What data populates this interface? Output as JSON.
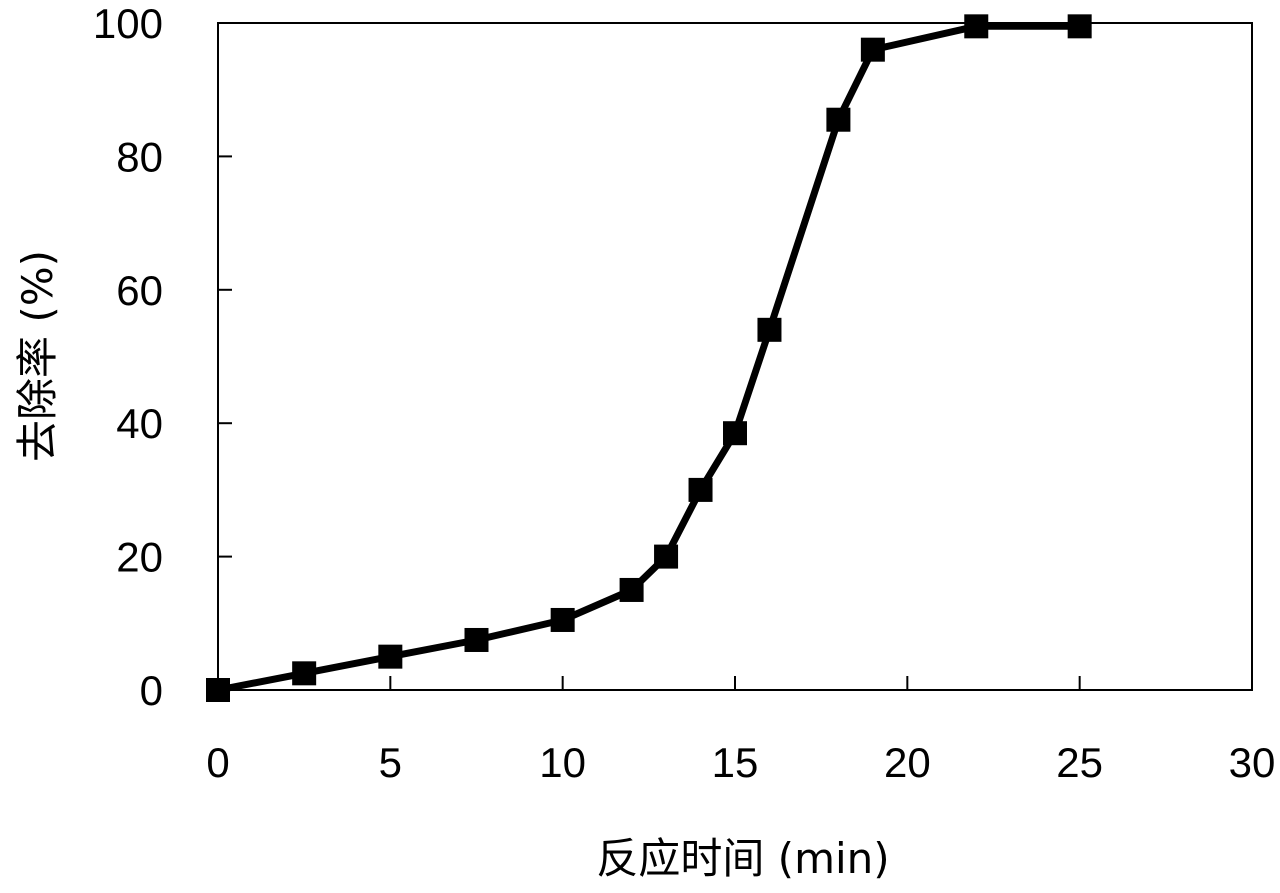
{
  "chart_data": {
    "type": "line",
    "xlabel": "反应时间 (min)",
    "ylabel": "去除率 (%)",
    "xlim": [
      0,
      30
    ],
    "ylim": [
      0,
      100
    ],
    "xticks": [
      "0",
      "5",
      "10",
      "15",
      "20",
      "25",
      "30"
    ],
    "yticks": [
      "0",
      "20",
      "40",
      "60",
      "80",
      "100"
    ],
    "grid": false,
    "legend": "none",
    "marker": "square",
    "series": [
      {
        "x": [
          0,
          2.5,
          5,
          7.5,
          10,
          12,
          13,
          14,
          15,
          16,
          18,
          19,
          22,
          25
        ],
        "y": [
          0,
          2.5,
          5,
          7.5,
          10.5,
          15,
          20,
          30,
          38.5,
          54,
          85.5,
          96,
          99.5,
          99.5
        ]
      }
    ],
    "colors": {
      "line": "#000000",
      "marker": "#000000",
      "frame": "#000000",
      "background": "#ffffff"
    }
  }
}
